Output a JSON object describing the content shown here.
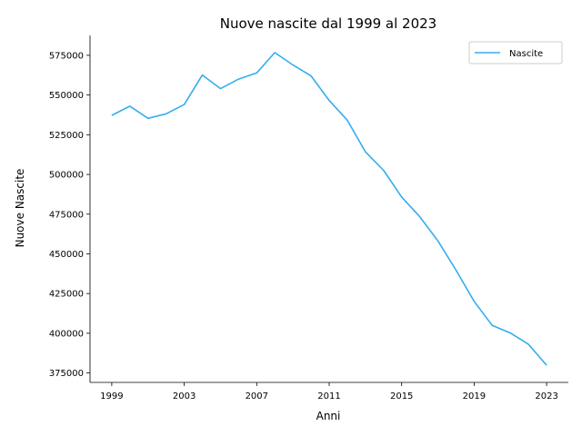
{
  "chart_data": {
    "type": "line",
    "title": "Nuove nascite dal 1999 al 2023",
    "xlabel": "Anni",
    "ylabel": "Nuove Nascite",
    "x": [
      1999,
      2000,
      2001,
      2002,
      2003,
      2004,
      2005,
      2006,
      2007,
      2008,
      2009,
      2010,
      2011,
      2012,
      2013,
      2014,
      2015,
      2016,
      2017,
      2018,
      2019,
      2020,
      2021,
      2022,
      2023
    ],
    "series": [
      {
        "name": "Nascite",
        "color": "#33adf0",
        "values": [
          537200,
          543000,
          535300,
          538200,
          544000,
          562600,
          554000,
          560000,
          563900,
          576700,
          568900,
          562000,
          546600,
          534200,
          514300,
          502600,
          485800,
          473400,
          458200,
          439700,
          420100,
          404900,
          400200,
          393000,
          379900
        ]
      }
    ],
    "xticks": [
      1999,
      2003,
      2007,
      2011,
      2015,
      2019,
      2023
    ],
    "xtick_labels": [
      "1999",
      "2003",
      "2007",
      "2011",
      "2015",
      "2019",
      "2023"
    ],
    "yticks": [
      375000,
      400000,
      425000,
      450000,
      475000,
      500000,
      525000,
      550000,
      575000
    ],
    "ytick_labels": [
      "375000",
      "400000",
      "425000",
      "450000",
      "475000",
      "500000",
      "525000",
      "550000",
      "575000"
    ],
    "xlim": [
      1997.8,
      2024.2
    ],
    "ylim": [
      369065,
      587535
    ],
    "grid": false,
    "legend_position": "top-right"
  }
}
